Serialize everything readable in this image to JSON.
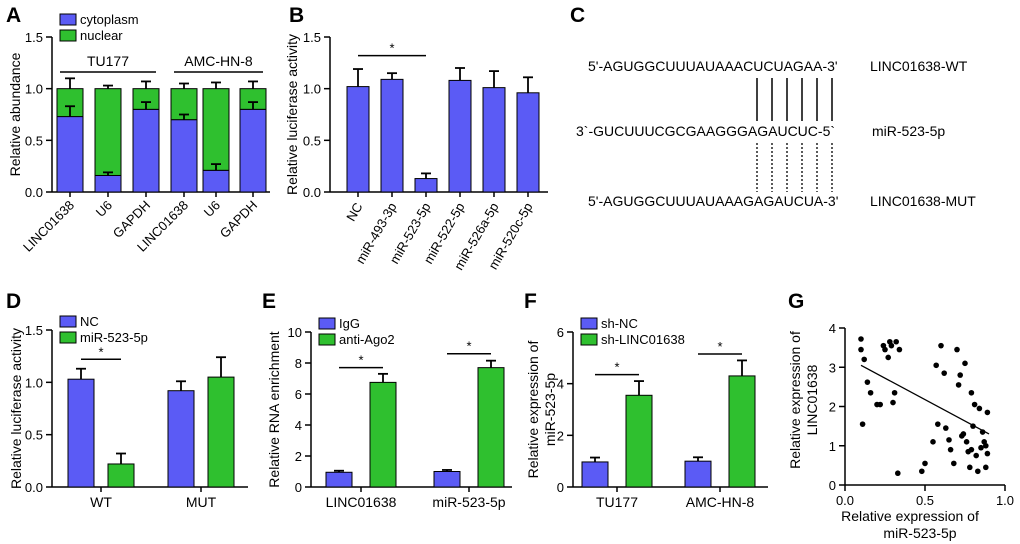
{
  "panels": {
    "A": "A",
    "B": "B",
    "C": "C",
    "D": "D",
    "E": "E",
    "F": "F",
    "G": "G"
  },
  "colors": {
    "blue": "#5b5bf5",
    "green": "#2fc02f"
  },
  "chart_data": [
    {
      "panel": "A",
      "type": "bar",
      "stacked": true,
      "categories": [
        "LINC01638",
        "U6",
        "GAPDH",
        "LINC01638",
        "U6",
        "GAPDH"
      ],
      "groups": [
        {
          "name": "TU177",
          "span": [
            0,
            2
          ]
        },
        {
          "name": "AMC-HN-8",
          "span": [
            3,
            5
          ]
        }
      ],
      "series": [
        {
          "name": "cytoplasm",
          "color": "#5b5bf5",
          "values": [
            0.73,
            0.16,
            0.8,
            0.7,
            0.21,
            0.8
          ],
          "err": [
            0.1,
            0.03,
            0.07,
            0.05,
            0.06,
            0.07
          ]
        },
        {
          "name": "nuclear",
          "color": "#2fc02f",
          "values": [
            0.27,
            0.84,
            0.2,
            0.3,
            0.79,
            0.2
          ],
          "err": [
            0.1,
            0.03,
            0.07,
            0.05,
            0.06,
            0.07
          ]
        }
      ],
      "ylabel": "Relative abundance",
      "ylim": [
        0,
        1.5
      ],
      "yticks": [
        "0.0",
        "0.5",
        "1.0",
        "1.5"
      ],
      "legend": "top-left"
    },
    {
      "panel": "B",
      "type": "bar",
      "categories": [
        "NC",
        "miR-493-3p",
        "miR-523-5p",
        "miR-522-5p",
        "miR-526a-5p",
        "miR-520c-5p"
      ],
      "series": [
        {
          "name": "",
          "color": "#5b5bf5",
          "values": [
            1.02,
            1.09,
            0.13,
            1.08,
            1.01,
            0.96
          ],
          "err": [
            0.17,
            0.06,
            0.05,
            0.12,
            0.16,
            0.15
          ]
        }
      ],
      "ylabel": "Relative luciferase activity",
      "ylim": [
        0,
        1.5
      ],
      "yticks": [
        "0.0",
        "0.5",
        "1.0",
        "1.5"
      ],
      "sig": [
        {
          "from": 0,
          "to": 2,
          "label": "*",
          "y": 1.32
        }
      ]
    },
    {
      "panel": "D",
      "type": "bar",
      "categories": [
        "WT",
        "MUT"
      ],
      "series": [
        {
          "name": "NC",
          "color": "#5b5bf5",
          "values": [
            1.03,
            0.92
          ],
          "err": [
            0.1,
            0.09
          ]
        },
        {
          "name": "miR-523-5p",
          "color": "#2fc02f",
          "values": [
            0.22,
            1.05
          ],
          "err": [
            0.1,
            0.19
          ]
        }
      ],
      "ylabel": "Relative luciferase activity",
      "ylim": [
        0,
        1.5
      ],
      "yticks": [
        "0.0",
        "0.5",
        "1.0",
        "1.5"
      ],
      "legend": "top-left",
      "sig": [
        {
          "group": 0,
          "label": "*",
          "y": 1.22
        }
      ]
    },
    {
      "panel": "E",
      "type": "bar",
      "categories": [
        "LINC01638",
        "miR-523-5p"
      ],
      "series": [
        {
          "name": "IgG",
          "color": "#5b5bf5",
          "values": [
            0.95,
            1.0
          ],
          "err": [
            0.1,
            0.1
          ]
        },
        {
          "name": "anti-Ago2",
          "color": "#2fc02f",
          "values": [
            6.75,
            7.7
          ],
          "err": [
            0.55,
            0.45
          ]
        }
      ],
      "ylabel": "Relative RNA enrichment",
      "ylim": [
        0,
        10
      ],
      "yticks": [
        "0",
        "2",
        "4",
        "6",
        "8",
        "10"
      ],
      "legend": "top-left",
      "sig": [
        {
          "group": 0,
          "label": "*",
          "y": 7.7
        },
        {
          "group": 1,
          "label": "*",
          "y": 8.6
        }
      ]
    },
    {
      "panel": "F",
      "type": "bar",
      "categories": [
        "TU177",
        "AMC-HN-8"
      ],
      "series": [
        {
          "name": "sh-NC",
          "color": "#5b5bf5",
          "values": [
            0.97,
            1.0
          ],
          "err": [
            0.17,
            0.15
          ]
        },
        {
          "name": "sh-LINC01638",
          "color": "#2fc02f",
          "values": [
            3.55,
            4.3
          ],
          "err": [
            0.55,
            0.6
          ]
        }
      ],
      "ylabel": "Relative expression of miR-523-5p",
      "ylim": [
        0,
        6
      ],
      "yticks": [
        "0",
        "2",
        "4",
        "6"
      ],
      "legend": "top-left",
      "sig": [
        {
          "group": 0,
          "label": "*",
          "y": 4.35
        },
        {
          "group": 1,
          "label": "*",
          "y": 5.15
        }
      ]
    },
    {
      "panel": "G",
      "type": "scatter",
      "xlabel": "Relative expression of miR-523-5p",
      "ylabel": "Relative expression of LINC01638",
      "xlim": [
        0,
        1
      ],
      "ylim": [
        0,
        4
      ],
      "xticks": [
        "0.0",
        "0.5",
        "1.0"
      ],
      "yticks": [
        "0",
        "1",
        "2",
        "3",
        "4"
      ],
      "trend": [
        [
          0.1,
          3.05
        ],
        [
          0.9,
          1.3
        ]
      ],
      "points": [
        [
          0.1,
          3.72
        ],
        [
          0.1,
          3.45
        ],
        [
          0.12,
          3.2
        ],
        [
          0.11,
          1.55
        ],
        [
          0.14,
          2.62
        ],
        [
          0.16,
          2.35
        ],
        [
          0.2,
          2.05
        ],
        [
          0.22,
          2.05
        ],
        [
          0.24,
          3.55
        ],
        [
          0.25,
          3.45
        ],
        [
          0.27,
          3.25
        ],
        [
          0.28,
          3.65
        ],
        [
          0.29,
          3.55
        ],
        [
          0.3,
          2.1
        ],
        [
          0.31,
          2.35
        ],
        [
          0.32,
          3.65
        ],
        [
          0.34,
          3.45
        ],
        [
          0.33,
          0.3
        ],
        [
          0.48,
          0.35
        ],
        [
          0.5,
          0.55
        ],
        [
          0.55,
          1.1
        ],
        [
          0.57,
          3.05
        ],
        [
          0.58,
          1.55
        ],
        [
          0.6,
          3.55
        ],
        [
          0.62,
          2.85
        ],
        [
          0.63,
          1.45
        ],
        [
          0.65,
          1.15
        ],
        [
          0.66,
          0.9
        ],
        [
          0.68,
          0.55
        ],
        [
          0.7,
          3.45
        ],
        [
          0.71,
          2.55
        ],
        [
          0.72,
          2.8
        ],
        [
          0.73,
          1.25
        ],
        [
          0.74,
          1.3
        ],
        [
          0.75,
          3.1
        ],
        [
          0.76,
          1.1
        ],
        [
          0.77,
          0.85
        ],
        [
          0.78,
          0.45
        ],
        [
          0.79,
          0.9
        ],
        [
          0.8,
          1.5
        ],
        [
          0.81,
          2.05
        ],
        [
          0.82,
          0.75
        ],
        [
          0.83,
          0.35
        ],
        [
          0.84,
          1.95
        ],
        [
          0.85,
          0.95
        ],
        [
          0.86,
          1.35
        ],
        [
          0.87,
          1.1
        ],
        [
          0.88,
          1.0
        ],
        [
          0.89,
          0.8
        ],
        [
          0.88,
          0.45
        ],
        [
          0.89,
          1.85
        ],
        [
          0.79,
          2.35
        ]
      ]
    }
  ],
  "panel_c": {
    "wt_seq": "5'-AGUGGCUUUAUAAACUCUAGAA-3'",
    "wt_label": "LINC01638-WT",
    "mir_seq": "3`-GUCUUUCGCGAAGGGAGAUCUC-5`",
    "mir_label": "miR-523-5p",
    "mut_seq": "5'-AGUGGCUUUAUAAAGAGAUCUA-3'",
    "mut_label": "LINC01638-MUT"
  }
}
